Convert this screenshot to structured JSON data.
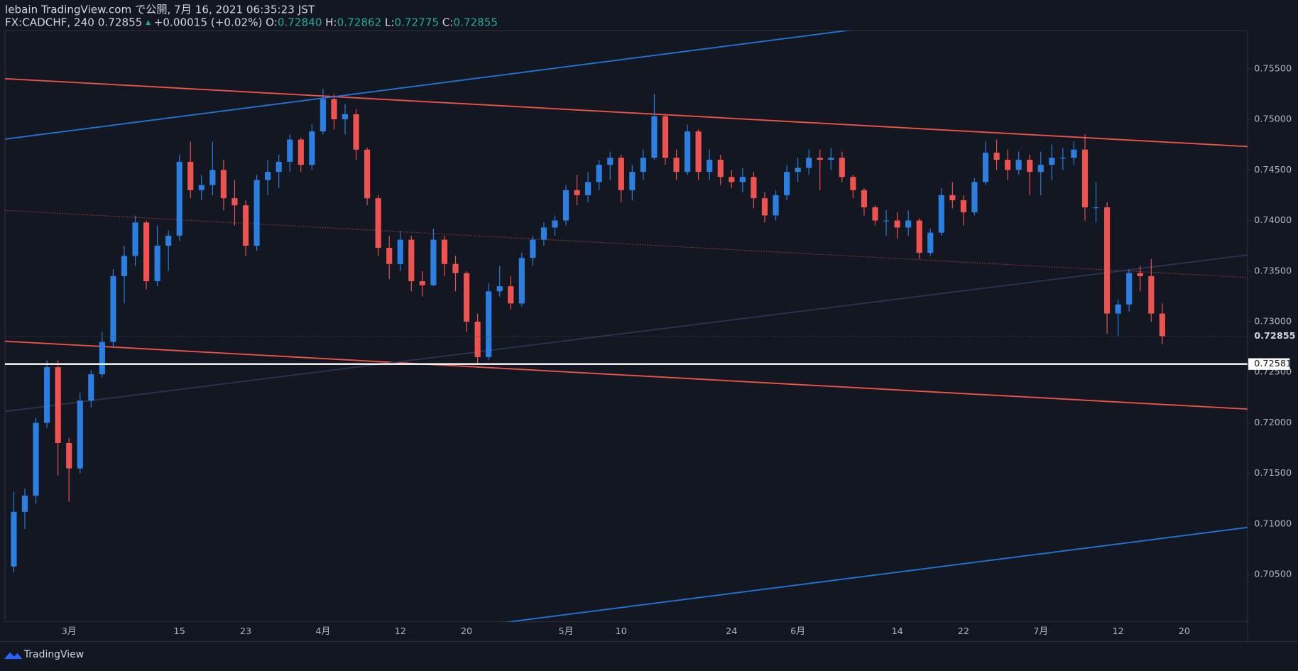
{
  "header": {
    "title": "lebain TradingView.com で公開, 7月 16, 2021 06:35:23 JST",
    "symbol": "FX:CADCHF, 240 0.72855",
    "change": "+0.00015 (+0.02%)",
    "ohlc": [
      {
        "label": "O:",
        "value": "0.72840"
      },
      {
        "label": "H:",
        "value": "0.72862"
      },
      {
        "label": "L:",
        "value": "0.72775"
      },
      {
        "label": "C:",
        "value": "0.72855"
      }
    ]
  },
  "footer": {
    "brand": "TradingView"
  },
  "chart_data": {
    "type": "candlestick",
    "up_color": "#2a7fe0",
    "down_color": "#ef5350",
    "categories": [
      null,
      null,
      null,
      null,
      null,
      "3月",
      null,
      null,
      null,
      null,
      null,
      null,
      null,
      null,
      null,
      "15",
      null,
      null,
      null,
      null,
      null,
      "23",
      null,
      null,
      null,
      null,
      null,
      null,
      "4月",
      null,
      null,
      null,
      null,
      null,
      null,
      "12",
      null,
      null,
      null,
      null,
      null,
      "20",
      null,
      null,
      null,
      null,
      null,
      null,
      null,
      null,
      "5月",
      null,
      null,
      null,
      null,
      "10",
      null,
      null,
      null,
      null,
      null,
      null,
      null,
      null,
      null,
      "24",
      null,
      null,
      null,
      null,
      null,
      "6月",
      null,
      null,
      null,
      null,
      null,
      null,
      null,
      null,
      "14",
      null,
      null,
      null,
      null,
      null,
      "22",
      null,
      null,
      null,
      null,
      null,
      null,
      "7月",
      null,
      null,
      null,
      null,
      null,
      null,
      "12",
      null,
      null,
      null,
      null,
      null,
      "20",
      null,
      null,
      null,
      null,
      null
    ],
    "open": [
      0.7058,
      0.7112,
      0.7128,
      0.72,
      0.7255,
      0.718,
      0.7155,
      0.7222,
      0.7248,
      0.728,
      0.7345,
      0.7365,
      0.7398,
      0.734,
      0.7375,
      0.7385,
      0.7458,
      0.743,
      0.7435,
      0.745,
      0.7422,
      0.7415,
      0.7375,
      0.744,
      0.7448,
      0.7458,
      0.748,
      0.7455,
      0.7488,
      0.752,
      0.75,
      0.7505,
      0.747,
      0.7422,
      0.7373,
      0.7357,
      0.7381,
      0.734,
      0.7336,
      0.7381,
      0.7357,
      0.7348,
      0.73,
      0.7265,
      0.733,
      0.7335,
      0.7318,
      0.7363,
      0.7381,
      0.7393,
      0.74,
      0.743,
      0.7425,
      0.7438,
      0.7455,
      0.7462,
      0.743,
      0.7448,
      0.7462,
      0.7503,
      0.7462,
      0.7448,
      0.7488,
      0.7448,
      0.746,
      0.7443,
      0.7438,
      0.7443,
      0.7422,
      0.7405,
      0.7425,
      0.7448,
      0.7452,
      0.7462,
      0.746,
      0.7462,
      0.7443,
      0.743,
      0.7413,
      0.74,
      0.74,
      0.7393,
      0.74,
      0.7368,
      0.7388,
      0.7425,
      0.742,
      0.7408,
      0.7438,
      0.7467,
      0.746,
      0.745,
      0.746,
      0.7448,
      0.7455,
      0.7462,
      0.7462,
      0.747,
      0.7413,
      0.7413,
      0.7308,
      0.7317,
      0.7348,
      0.7345,
      0.7308,
      null,
      null,
      null,
      null,
      null,
      null,
      null
    ],
    "high": [
      0.7132,
      0.7135,
      0.7205,
      0.7262,
      0.7262,
      0.7185,
      0.723,
      0.7252,
      0.729,
      0.7352,
      0.7375,
      0.7405,
      0.74,
      0.7395,
      0.739,
      0.7465,
      0.7478,
      0.7445,
      0.7478,
      0.746,
      0.744,
      0.742,
      0.7445,
      0.746,
      0.7465,
      0.7485,
      0.7482,
      0.7495,
      0.753,
      0.7525,
      0.7515,
      0.751,
      0.7472,
      0.7425,
      0.7385,
      0.739,
      0.7385,
      0.735,
      0.7392,
      0.7385,
      0.7365,
      0.735,
      0.7308,
      0.7338,
      0.7355,
      0.7345,
      0.7368,
      0.7385,
      0.7398,
      0.7405,
      0.7435,
      0.7445,
      0.7448,
      0.746,
      0.7468,
      0.7465,
      0.7455,
      0.747,
      0.7525,
      0.7505,
      0.747,
      0.7495,
      0.749,
      0.747,
      0.7465,
      0.745,
      0.7452,
      0.7448,
      0.7428,
      0.743,
      0.7455,
      0.7462,
      0.747,
      0.747,
      0.7472,
      0.7468,
      0.7445,
      0.7432,
      0.7415,
      0.741,
      0.7408,
      0.741,
      0.7402,
      0.7392,
      0.7432,
      0.7438,
      0.7425,
      0.7442,
      0.7478,
      0.748,
      0.747,
      0.7468,
      0.7465,
      0.7468,
      0.7475,
      0.7472,
      0.7478,
      0.7485,
      0.7438,
      0.7418,
      0.7322,
      0.7352,
      0.7355,
      0.7362,
      0.7318,
      null,
      null,
      null,
      null,
      null,
      null,
      null
    ],
    "low": [
      0.7052,
      0.7095,
      0.712,
      0.7195,
      0.7148,
      0.7122,
      0.715,
      0.7215,
      0.7245,
      0.7275,
      0.7318,
      0.7355,
      0.7332,
      0.7335,
      0.735,
      0.738,
      0.7422,
      0.742,
      0.7425,
      0.741,
      0.7395,
      0.7365,
      0.737,
      0.7425,
      0.7432,
      0.7448,
      0.7448,
      0.745,
      0.7485,
      0.749,
      0.7485,
      0.746,
      0.7415,
      0.7365,
      0.7342,
      0.735,
      0.733,
      0.7325,
      0.7335,
      0.7345,
      0.733,
      0.729,
      0.7258,
      0.7262,
      0.7325,
      0.7312,
      0.7315,
      0.7355,
      0.7375,
      0.7385,
      0.7395,
      0.7415,
      0.7418,
      0.743,
      0.744,
      0.7418,
      0.742,
      0.744,
      0.746,
      0.7455,
      0.744,
      0.7445,
      0.744,
      0.744,
      0.7435,
      0.7432,
      0.7428,
      0.7412,
      0.7398,
      0.74,
      0.742,
      0.7438,
      0.7445,
      0.743,
      0.745,
      0.7438,
      0.7422,
      0.7405,
      0.7395,
      0.7385,
      0.7382,
      0.7385,
      0.7362,
      0.7365,
      0.7385,
      0.7412,
      0.7395,
      0.7405,
      0.7435,
      0.745,
      0.744,
      0.7445,
      0.7425,
      0.7425,
      0.744,
      0.745,
      0.7455,
      0.74,
      0.7398,
      0.7288,
      0.7285,
      0.731,
      0.733,
      0.73,
      0.72775,
      null,
      null,
      null,
      null,
      null,
      null,
      null
    ],
    "close": [
      0.7112,
      0.7128,
      0.72,
      0.7255,
      0.718,
      0.7155,
      0.7222,
      0.7248,
      0.728,
      0.7345,
      0.7365,
      0.7398,
      0.734,
      0.7375,
      0.7385,
      0.7458,
      0.743,
      0.7435,
      0.745,
      0.7422,
      0.7415,
      0.7375,
      0.744,
      0.7448,
      0.7458,
      0.748,
      0.7455,
      0.7488,
      0.752,
      0.75,
      0.7505,
      0.747,
      0.7422,
      0.7373,
      0.7357,
      0.7381,
      0.734,
      0.7336,
      0.7381,
      0.7357,
      0.7348,
      0.73,
      0.7265,
      0.733,
      0.7335,
      0.7318,
      0.7363,
      0.7381,
      0.7393,
      0.74,
      0.743,
      0.7425,
      0.7438,
      0.7455,
      0.7462,
      0.743,
      0.7448,
      0.7462,
      0.7503,
      0.7462,
      0.7448,
      0.7488,
      0.7448,
      0.746,
      0.7443,
      0.7438,
      0.7443,
      0.7422,
      0.7405,
      0.7425,
      0.7448,
      0.7452,
      0.7462,
      0.746,
      0.7462,
      0.7443,
      0.743,
      0.7413,
      0.74,
      0.74,
      0.7393,
      0.74,
      0.7368,
      0.7388,
      0.7425,
      0.742,
      0.7408,
      0.7438,
      0.7467,
      0.746,
      0.745,
      0.746,
      0.7448,
      0.7455,
      0.7462,
      0.7462,
      0.747,
      0.7413,
      0.7413,
      0.7308,
      0.7317,
      0.7348,
      0.7345,
      0.7308,
      0.72855,
      null,
      null,
      null,
      null,
      null,
      null,
      null
    ],
    "ylim": [
      0.70034,
      0.75876
    ],
    "yticks": [
      {
        "value": 0.705,
        "label": "0.70500"
      },
      {
        "value": 0.71,
        "label": "0.71000"
      },
      {
        "value": 0.715,
        "label": "0.71500"
      },
      {
        "value": 0.72,
        "label": "0.72000"
      },
      {
        "value": 0.725,
        "label": "0.72500"
      },
      {
        "value": 0.73,
        "label": "0.73000"
      },
      {
        "value": 0.735,
        "label": "0.73500"
      },
      {
        "value": 0.74,
        "label": "0.74000"
      },
      {
        "value": 0.745,
        "label": "0.74500"
      },
      {
        "value": 0.75,
        "label": "0.75000"
      },
      {
        "value": 0.755,
        "label": "0.75500"
      }
    ],
    "trendlines": [
      {
        "color": "#f0524a",
        "style": "solid",
        "values": [
          0.75402,
          0.74731
        ]
      },
      {
        "color": "#f0524a",
        "style": "solid",
        "values": [
          0.72807,
          0.72136
        ]
      },
      {
        "color": "#c0433d",
        "style": "dotted",
        "values": [
          0.741,
          0.73437
        ]
      },
      {
        "color": "#2273d6",
        "style": "solid",
        "values": [
          0.74804,
          0.76388
        ]
      },
      {
        "color": "#2273d6",
        "style": "solid",
        "values": [
          0.69396,
          0.70966
        ]
      },
      {
        "color": "#2a3550",
        "style": "solid",
        "values": [
          0.72113,
          0.73659
        ]
      }
    ],
    "price_lines": [
      {
        "value": 0.72581,
        "color": "#ffffff"
      },
      {
        "value": 0.72855,
        "color": "#3a4356"
      }
    ]
  }
}
